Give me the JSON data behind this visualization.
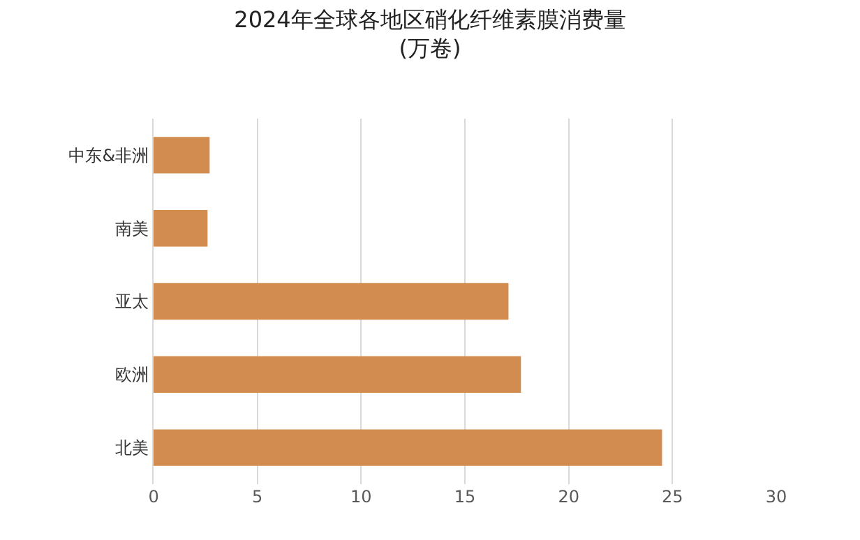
{
  "chart_data": {
    "type": "bar",
    "orientation": "horizontal",
    "title": "2024年全球各地区硝化纤维素膜消费量",
    "subtitle": "(万卷)",
    "categories": [
      "中东&非洲",
      "南美",
      "亚太",
      "欧洲",
      "北美"
    ],
    "values": [
      2.7,
      2.6,
      17.1,
      17.7,
      24.5
    ],
    "color": "#d38c4f",
    "xlim": [
      0,
      30
    ],
    "xticks": [
      0,
      5,
      10,
      15,
      20,
      25,
      30
    ],
    "grid": "x",
    "legend": false
  }
}
